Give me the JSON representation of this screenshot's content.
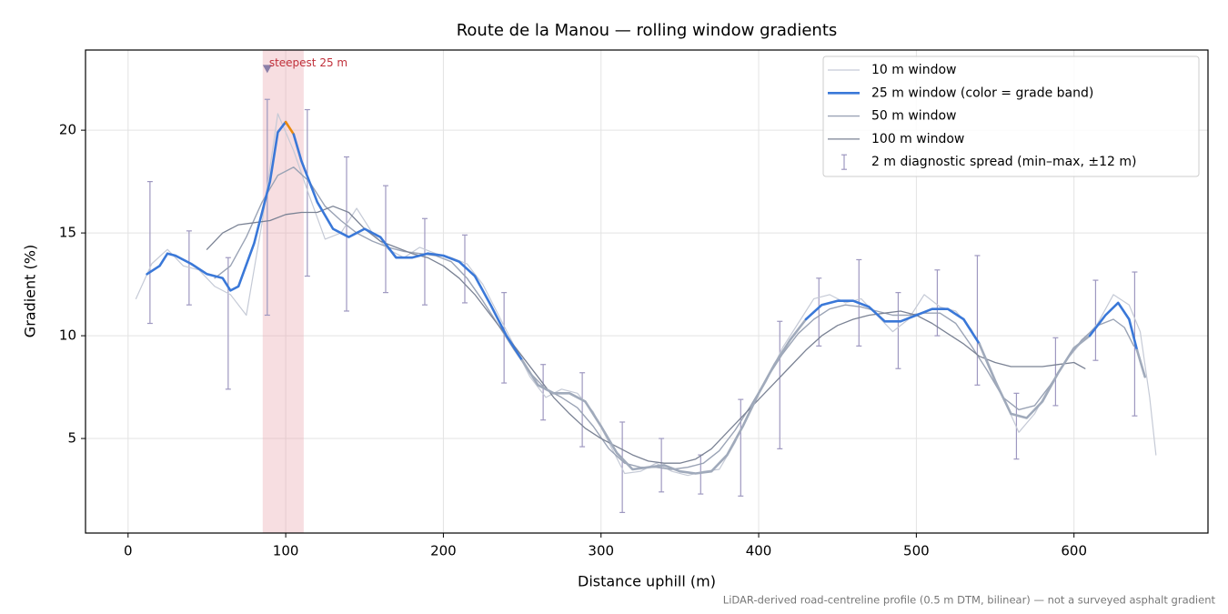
{
  "chart_data": {
    "type": "line",
    "title": "Route de la Manou — rolling window gradients",
    "x_label": "Distance uphill (m)",
    "y_label": "Gradient (%)",
    "footnote": "LiDAR-derived road-centreline profile (0.5 m DTM, bilinear) — not a surveyed asphalt gradient",
    "xlim": [
      -27,
      685
    ],
    "ylim": [
      0.4,
      23.9
    ],
    "xticks": [
      0,
      100,
      200,
      300,
      400,
      500,
      600
    ],
    "yticks": [
      5,
      10,
      15,
      20
    ],
    "grid": true,
    "legend": "upper right",
    "series": [
      {
        "name": "10 m window",
        "color": "#c5cad6",
        "width": 1.2,
        "x": [
          5,
          15,
          25,
          35,
          45,
          55,
          65,
          75,
          85,
          95,
          105,
          115,
          125,
          135,
          145,
          155,
          165,
          175,
          185,
          195,
          205,
          215,
          225,
          235,
          245,
          255,
          265,
          275,
          285,
          295,
          305,
          315,
          325,
          335,
          345,
          355,
          365,
          375,
          385,
          395,
          405,
          415,
          425,
          435,
          445,
          455,
          465,
          475,
          485,
          495,
          505,
          515,
          525,
          535,
          545,
          555,
          565,
          575,
          585,
          595,
          605,
          615,
          625,
          635,
          642,
          648,
          652
        ],
        "values": [
          11.8,
          13.5,
          14.2,
          13.4,
          13.2,
          12.4,
          12.0,
          11.0,
          15.5,
          20.8,
          19.0,
          16.8,
          14.7,
          15.0,
          16.2,
          15.0,
          14.2,
          13.8,
          14.3,
          14.0,
          13.8,
          13.5,
          12.5,
          11.0,
          9.5,
          8.0,
          7.0,
          7.4,
          7.2,
          6.3,
          4.8,
          3.3,
          3.4,
          3.8,
          3.4,
          3.2,
          3.4,
          3.5,
          4.8,
          6.5,
          7.8,
          9.4,
          10.6,
          11.8,
          12.0,
          11.6,
          11.8,
          11.0,
          10.2,
          10.8,
          12.0,
          11.4,
          11.2,
          10.3,
          8.8,
          7.0,
          5.3,
          6.2,
          7.6,
          8.8,
          9.7,
          10.6,
          12.0,
          11.5,
          10.2,
          7.0,
          4.2
        ]
      },
      {
        "name": "25 m window (color = grade band)",
        "color": "#3a78d8",
        "width": 2.6,
        "band_colors": [
          {
            "min": 0,
            "color": "#a0aabb"
          },
          {
            "min": 10,
            "color": "#3a78d8"
          },
          {
            "min": 20,
            "color": "#e8890c"
          }
        ],
        "x": [
          12,
          20,
          25,
          30,
          40,
          50,
          60,
          65,
          70,
          80,
          90,
          95,
          100,
          105,
          110,
          120,
          130,
          140,
          150,
          160,
          170,
          180,
          190,
          200,
          210,
          220,
          230,
          240,
          250,
          260,
          270,
          280,
          290,
          300,
          310,
          320,
          330,
          340,
          350,
          360,
          370,
          380,
          390,
          400,
          410,
          420,
          430,
          440,
          450,
          460,
          470,
          480,
          490,
          500,
          510,
          520,
          530,
          540,
          550,
          560,
          570,
          580,
          590,
          600,
          610,
          620,
          628,
          635,
          640,
          645
        ],
        "values": [
          13.0,
          13.4,
          14.0,
          13.9,
          13.5,
          13.0,
          12.8,
          12.2,
          12.4,
          14.5,
          17.5,
          19.9,
          20.4,
          19.8,
          18.5,
          16.5,
          15.2,
          14.8,
          15.2,
          14.8,
          13.8,
          13.8,
          14.0,
          13.9,
          13.6,
          12.9,
          11.5,
          10.0,
          8.8,
          7.6,
          7.2,
          7.2,
          6.8,
          5.6,
          4.3,
          3.5,
          3.6,
          3.7,
          3.4,
          3.3,
          3.4,
          4.2,
          5.6,
          7.2,
          8.6,
          9.8,
          10.8,
          11.5,
          11.7,
          11.7,
          11.4,
          10.7,
          10.7,
          11.0,
          11.3,
          11.3,
          10.8,
          9.6,
          7.8,
          6.2,
          6.0,
          6.8,
          8.2,
          9.4,
          10.0,
          11.0,
          11.6,
          10.8,
          9.3,
          8.0
        ]
      },
      {
        "name": "50 m window",
        "color": "#9aa3b5",
        "width": 1.4,
        "x": [
          55,
          65,
          75,
          85,
          95,
          105,
          115,
          125,
          135,
          145,
          155,
          165,
          175,
          185,
          195,
          205,
          215,
          225,
          235,
          245,
          255,
          265,
          275,
          285,
          295,
          305,
          315,
          325,
          335,
          345,
          355,
          365,
          375,
          385,
          395,
          405,
          415,
          425,
          435,
          445,
          455,
          465,
          475,
          485,
          495,
          505,
          515,
          525,
          535,
          545,
          555,
          565,
          575,
          585,
          595,
          605,
          615,
          625,
          632,
          638
        ],
        "values": [
          12.8,
          13.4,
          14.8,
          16.5,
          17.8,
          18.2,
          17.5,
          16.3,
          15.6,
          15.0,
          14.6,
          14.3,
          14.1,
          14.0,
          13.9,
          13.6,
          12.8,
          11.7,
          10.5,
          9.3,
          8.2,
          7.4,
          7.0,
          6.5,
          5.6,
          4.5,
          3.8,
          3.6,
          3.6,
          3.5,
          3.6,
          3.8,
          4.4,
          5.4,
          6.6,
          7.9,
          9.1,
          10.1,
          10.8,
          11.3,
          11.5,
          11.4,
          11.2,
          11.0,
          11.0,
          11.1,
          11.1,
          10.6,
          9.5,
          8.3,
          7.0,
          6.4,
          6.6,
          7.6,
          8.8,
          9.8,
          10.5,
          10.8,
          10.4,
          9.5
        ]
      },
      {
        "name": "100 m window",
        "color": "#7a8294",
        "width": 1.3,
        "x": [
          50,
          60,
          70,
          80,
          90,
          100,
          110,
          120,
          130,
          140,
          150,
          160,
          170,
          180,
          190,
          200,
          210,
          220,
          230,
          240,
          250,
          260,
          270,
          280,
          290,
          300,
          310,
          320,
          330,
          340,
          350,
          360,
          370,
          380,
          390,
          400,
          410,
          420,
          430,
          440,
          450,
          460,
          470,
          480,
          490,
          500,
          510,
          520,
          530,
          540,
          550,
          560,
          570,
          580,
          590,
          600,
          607
        ],
        "values": [
          14.2,
          15.0,
          15.4,
          15.5,
          15.6,
          15.9,
          16.0,
          16.0,
          16.3,
          16.0,
          15.2,
          14.6,
          14.3,
          14.0,
          13.8,
          13.4,
          12.8,
          12.0,
          11.0,
          10.0,
          9.0,
          8.0,
          7.0,
          6.2,
          5.5,
          5.0,
          4.6,
          4.2,
          3.9,
          3.8,
          3.8,
          4.0,
          4.5,
          5.3,
          6.1,
          6.9,
          7.7,
          8.5,
          9.3,
          10.0,
          10.5,
          10.8,
          11.0,
          11.1,
          11.2,
          11.0,
          10.6,
          10.1,
          9.6,
          9.0,
          8.7,
          8.5,
          8.5,
          8.5,
          8.6,
          8.7,
          8.4
        ]
      }
    ],
    "spread": {
      "name": "2 m diagnostic spread (min–max, ±12 m)",
      "color": "#9e98c0",
      "x": [
        13.9,
        38.7,
        63.5,
        88.3,
        113.7,
        138.6,
        163.4,
        188.2,
        213.6,
        238.5,
        263.3,
        288.1,
        313.5,
        338.3,
        363.2,
        388.6,
        413.4,
        438.2,
        463.6,
        488.5,
        513.3,
        538.7,
        563.5,
        588.3,
        613.7,
        638.5
      ],
      "min": [
        10.6,
        11.5,
        7.4,
        11.0,
        12.9,
        11.2,
        12.1,
        11.5,
        11.6,
        7.7,
        5.9,
        4.6,
        1.4,
        2.4,
        2.3,
        2.2,
        4.5,
        9.5,
        9.5,
        8.4,
        10.0,
        7.6,
        4.0,
        6.6,
        8.8,
        6.1
      ],
      "max": [
        17.5,
        15.1,
        13.8,
        21.5,
        21.0,
        18.7,
        17.3,
        15.7,
        14.9,
        12.1,
        8.6,
        8.2,
        5.8,
        5.0,
        4.2,
        6.9,
        10.7,
        12.8,
        13.7,
        12.1,
        13.2,
        13.9,
        7.2,
        9.9,
        12.7,
        13.1
      ]
    },
    "steepest": {
      "label": "steepest 25 m",
      "x_start": 85.4,
      "x_end": 111.4,
      "marker_x": 88.3,
      "marker_y": 23.0,
      "color": "#e8a0a8",
      "text_color": "#c0303a",
      "marker_color": "#8a7fa8"
    }
  }
}
